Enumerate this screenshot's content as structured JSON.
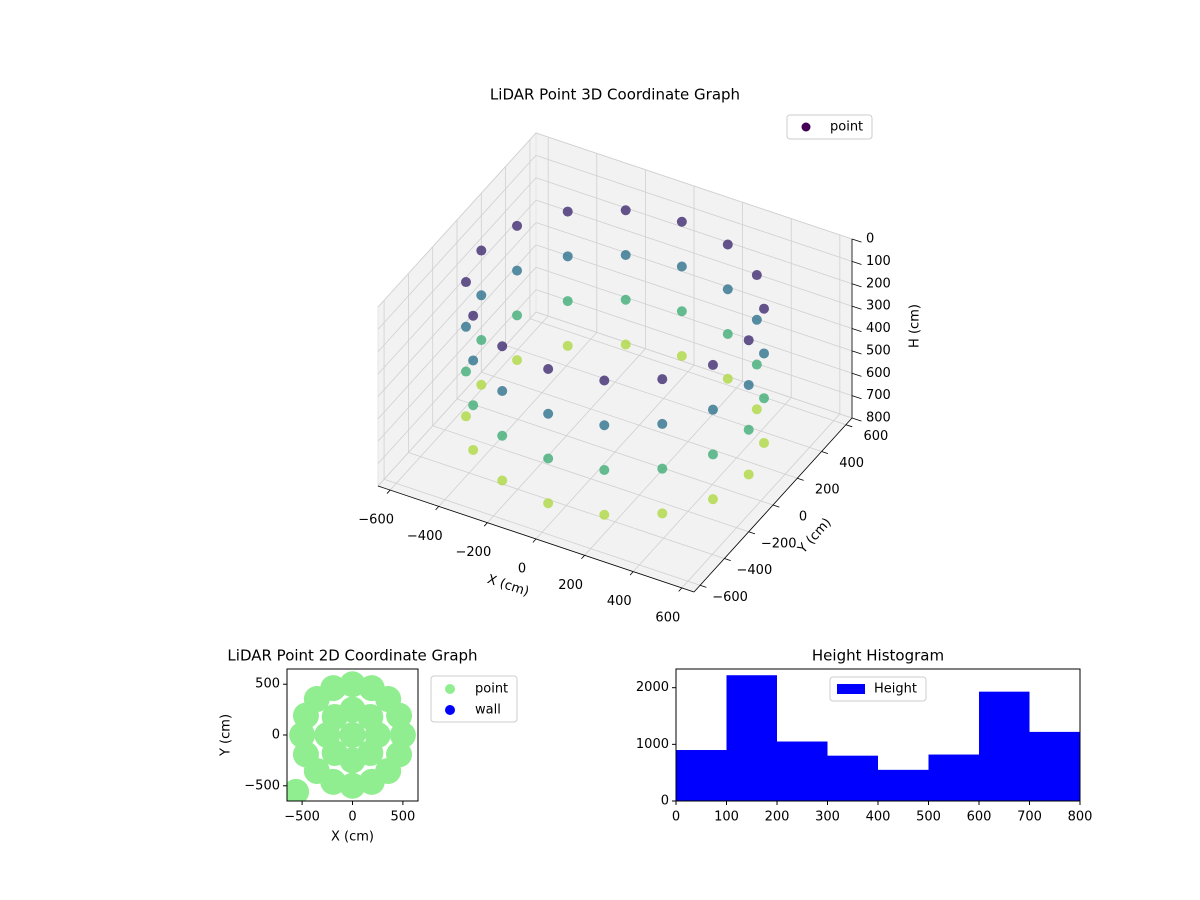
{
  "chart_data": [
    {
      "type": "scatter3d",
      "title": "LiDAR Point 3D Coordinate Graph",
      "xlabel": "X (cm)",
      "ylabel": "Y (cm)",
      "zlabel": "H (cm)",
      "xlim": [
        -650,
        650
      ],
      "ylim": [
        -650,
        650
      ],
      "zlim": [
        0,
        800
      ],
      "zinvert": true,
      "xticks": [
        {
          "value": -600,
          "label": "−600"
        },
        {
          "value": -400,
          "label": "−400"
        },
        {
          "value": -200,
          "label": "−200"
        },
        0,
        200,
        400,
        600
      ],
      "yticks": [
        {
          "value": -600,
          "label": "−600"
        },
        {
          "value": -400,
          "label": "−400"
        },
        {
          "value": -200,
          "label": "−200"
        },
        0,
        200,
        400,
        600
      ],
      "zticks": [
        0,
        100,
        200,
        300,
        400,
        500,
        600,
        700,
        800
      ],
      "series": [
        {
          "name": "point",
          "cmap": "viridis",
          "x": [
            550,
            508,
            389,
            210,
            0,
            -210,
            -389,
            -508,
            -550,
            -508,
            -389,
            -210,
            0,
            210,
            389,
            508,
            550,
            508,
            389,
            210,
            0,
            -210,
            -389,
            -508,
            -550,
            -508,
            -389,
            -210,
            0,
            210,
            389,
            508,
            550,
            508,
            389,
            210,
            0,
            -210,
            -389,
            -508,
            -550,
            -508,
            -389,
            -210,
            0,
            210,
            389,
            508,
            550,
            508,
            389,
            210,
            0,
            -210,
            -389,
            -508,
            -550,
            -508,
            -389,
            -210,
            0,
            210,
            389,
            508
          ],
          "y": [
            0,
            210,
            389,
            508,
            550,
            508,
            389,
            210,
            0,
            -210,
            -389,
            -508,
            -550,
            -508,
            -389,
            -210,
            0,
            210,
            389,
            508,
            550,
            508,
            389,
            210,
            0,
            -210,
            -389,
            -508,
            -550,
            -508,
            -389,
            -210,
            0,
            210,
            389,
            508,
            550,
            508,
            389,
            210,
            0,
            -210,
            -389,
            -508,
            -550,
            -508,
            -389,
            -210,
            0,
            210,
            389,
            508,
            550,
            508,
            389,
            210,
            0,
            -210,
            -389,
            -508,
            -550,
            -508,
            -389,
            -210
          ],
          "z": [
            100,
            100,
            100,
            100,
            100,
            100,
            100,
            100,
            100,
            100,
            100,
            100,
            100,
            100,
            100,
            100,
            300,
            300,
            300,
            300,
            300,
            300,
            300,
            300,
            300,
            300,
            300,
            300,
            300,
            300,
            300,
            300,
            500,
            500,
            500,
            500,
            500,
            500,
            500,
            500,
            500,
            500,
            500,
            500,
            500,
            500,
            500,
            500,
            700,
            700,
            700,
            700,
            700,
            700,
            700,
            700,
            700,
            700,
            700,
            700,
            700,
            700,
            700,
            700
          ]
        }
      ]
    },
    {
      "type": "scatter",
      "title": "LiDAR Point 2D Coordinate Graph",
      "xlabel": "X (cm)",
      "ylabel": "Y (cm)",
      "xlim": [
        -650,
        650
      ],
      "ylim": [
        -650,
        650
      ],
      "xticks": [
        {
          "value": -500,
          "label": "−500"
        },
        0,
        500
      ],
      "yticks": [
        {
          "value": -500,
          "label": "−500"
        },
        0,
        500
      ],
      "series": [
        {
          "name": "point",
          "color": "#90ee90",
          "x": [
            500,
            462,
            354,
            191,
            0,
            -191,
            -354,
            -462,
            -500,
            -462,
            -354,
            -191,
            0,
            191,
            354,
            462,
            250,
            177,
            0,
            -177,
            -250,
            -177,
            0,
            177,
            0,
            -560
          ],
          "y": [
            0,
            191,
            354,
            462,
            500,
            462,
            354,
            191,
            0,
            -191,
            -354,
            -462,
            -500,
            -462,
            -354,
            -191,
            0,
            177,
            250,
            177,
            0,
            -177,
            -250,
            -177,
            0,
            -560
          ]
        },
        {
          "name": "wall",
          "color": "#0000ff",
          "x": [],
          "y": []
        }
      ]
    },
    {
      "type": "histogram",
      "title": "Height Histogram",
      "legend": "upper center",
      "series": [
        {
          "name": "Height",
          "color": "#0000ff",
          "bins": [
            0,
            100,
            200,
            300,
            400,
            500,
            600,
            700,
            800
          ],
          "counts": [
            900,
            2220,
            1050,
            800,
            550,
            820,
            1930,
            1220
          ]
        }
      ],
      "xlim": [
        0,
        800
      ],
      "ylim": [
        0,
        2330
      ],
      "xticks": [
        0,
        100,
        200,
        300,
        400,
        500,
        600,
        700,
        800
      ],
      "yticks": [
        0,
        1000,
        2000
      ]
    }
  ]
}
